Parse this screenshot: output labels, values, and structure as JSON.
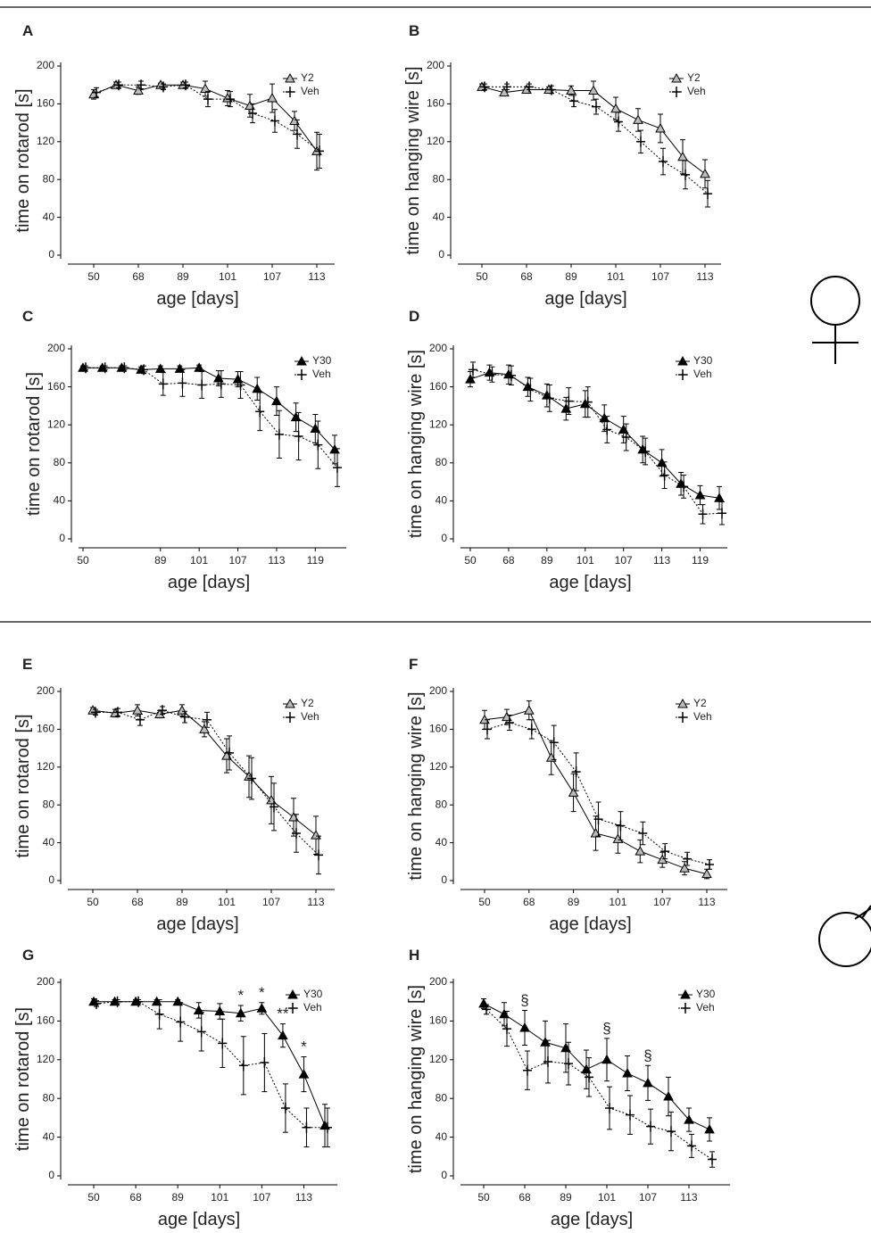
{
  "chart_data": [
    {
      "type": "line",
      "panel": "A",
      "ylabel": "time on rotarod [s]",
      "xlabel": "age [days]",
      "categories": [
        "50",
        null,
        "68",
        null,
        "89",
        null,
        "101",
        null,
        "107",
        null,
        "113"
      ],
      "ylim": [
        0,
        200
      ],
      "yticks": [
        0,
        40,
        80,
        120,
        160,
        200
      ],
      "series": [
        {
          "name": "Y2",
          "color": "#000000",
          "marker": "open-triangle",
          "line_style": "solid",
          "values": [
            170,
            180,
            174,
            180,
            180,
            176,
            166,
            158,
            166,
            142,
            110
          ],
          "errors": [
            5,
            3,
            4,
            2,
            3,
            8,
            8,
            12,
            15,
            10,
            20
          ]
        },
        {
          "name": "Veh",
          "color": "#000000",
          "marker": "plus",
          "line_style": "dotted",
          "values": [
            172,
            180,
            180,
            178,
            180,
            165,
            165,
            150,
            142,
            128,
            110
          ],
          "errors": [
            5,
            3,
            4,
            3,
            3,
            8,
            8,
            10,
            12,
            15,
            18
          ]
        }
      ]
    },
    {
      "type": "line",
      "panel": "B",
      "ylabel": "time on hanging wire [s]",
      "xlabel": "age [days]",
      "categories": [
        "50",
        null,
        "68",
        null,
        "89",
        null,
        "101",
        null,
        "107",
        null,
        "113"
      ],
      "ylim": [
        0,
        200
      ],
      "yticks": [
        0,
        40,
        80,
        120,
        160,
        200
      ],
      "series": [
        {
          "name": "Y2",
          "color": "#000000",
          "marker": "open-triangle",
          "line_style": "solid",
          "values": [
            178,
            172,
            175,
            175,
            174,
            174,
            155,
            143,
            134,
            104,
            86
          ],
          "errors": [
            3,
            3,
            3,
            3,
            5,
            10,
            12,
            12,
            15,
            18,
            15
          ]
        },
        {
          "name": "Veh",
          "color": "#000000",
          "marker": "plus",
          "line_style": "dotted",
          "values": [
            178,
            178,
            178,
            175,
            163,
            157,
            141,
            120,
            99,
            85,
            65
          ],
          "errors": [
            3,
            3,
            3,
            4,
            6,
            8,
            10,
            12,
            14,
            15,
            14
          ]
        }
      ]
    },
    {
      "type": "line",
      "panel": "C",
      "ylabel": "time on rotarod [s]",
      "xlabel": "age [days]",
      "categories": [
        "50",
        null,
        null,
        null,
        "89",
        null,
        "101",
        null,
        "107",
        null,
        "113",
        null,
        "119",
        null
      ],
      "ylim": [
        0,
        200
      ],
      "yticks": [
        0,
        40,
        80,
        120,
        160,
        200
      ],
      "series": [
        {
          "name": "Y30",
          "color": "#000000",
          "marker": "filled-triangle",
          "line_style": "solid",
          "values": [
            180,
            180,
            180,
            178,
            179,
            179,
            180,
            169,
            168,
            158,
            145,
            128,
            116,
            94
          ],
          "errors": [
            2,
            2,
            2,
            3,
            3,
            3,
            3,
            8,
            8,
            12,
            15,
            15,
            15,
            15
          ]
        },
        {
          "name": "Veh",
          "color": "#000000",
          "marker": "plus",
          "line_style": "dotted",
          "values": [
            180,
            180,
            180,
            178,
            163,
            164,
            162,
            163,
            162,
            134,
            110,
            108,
            99,
            75
          ],
          "errors": [
            2,
            2,
            2,
            4,
            12,
            14,
            14,
            14,
            14,
            20,
            25,
            25,
            25,
            20
          ]
        }
      ]
    },
    {
      "type": "line",
      "panel": "D",
      "ylabel": "time on hanging wire [s]",
      "xlabel": "age [days]",
      "categories": [
        "50",
        null,
        "68",
        null,
        "89",
        null,
        "101",
        null,
        "107",
        null,
        "113",
        null,
        "119",
        null
      ],
      "ylim": [
        0,
        200
      ],
      "yticks": [
        0,
        40,
        80,
        120,
        160,
        200
      ],
      "series": [
        {
          "name": "Y30",
          "color": "#000000",
          "marker": "filled-triangle",
          "line_style": "solid",
          "values": [
            168,
            175,
            173,
            160,
            151,
            137,
            142,
            127,
            115,
            94,
            80,
            58,
            46,
            43
          ],
          "errors": [
            8,
            8,
            10,
            10,
            12,
            12,
            14,
            14,
            14,
            14,
            14,
            12,
            10,
            12
          ]
        },
        {
          "name": "Veh",
          "color": "#000000",
          "marker": "plus",
          "line_style": "dotted",
          "values": [
            178,
            173,
            172,
            157,
            148,
            145,
            144,
            115,
            107,
            92,
            67,
            55,
            26,
            27
          ],
          "errors": [
            8,
            8,
            10,
            12,
            14,
            14,
            16,
            14,
            14,
            14,
            14,
            12,
            10,
            12
          ]
        }
      ]
    },
    {
      "type": "line",
      "panel": "E",
      "ylabel": "time on rotarod [s]",
      "xlabel": "age [days]",
      "categories": [
        "50",
        null,
        "68",
        null,
        "89",
        null,
        "101",
        null,
        "107",
        null,
        "113"
      ],
      "ylim": [
        0,
        200
      ],
      "yticks": [
        0,
        40,
        80,
        120,
        160,
        200
      ],
      "series": [
        {
          "name": "Y2",
          "color": "#000000",
          "marker": "open-triangle",
          "line_style": "solid",
          "values": [
            180,
            177,
            180,
            176,
            180,
            160,
            132,
            110,
            85,
            67,
            48
          ],
          "errors": [
            3,
            4,
            6,
            4,
            6,
            8,
            18,
            22,
            25,
            20,
            20
          ]
        },
        {
          "name": "Veh",
          "color": "#000000",
          "marker": "plus",
          "line_style": "dotted",
          "values": [
            178,
            178,
            170,
            180,
            173,
            170,
            135,
            108,
            78,
            50,
            27
          ],
          "errors": [
            3,
            4,
            6,
            4,
            6,
            8,
            18,
            22,
            25,
            20,
            20
          ]
        }
      ]
    },
    {
      "type": "line",
      "panel": "F",
      "ylabel": "time on hanging wire [s]",
      "xlabel": "age [days]",
      "categories": [
        "50",
        null,
        "68",
        null,
        "89",
        null,
        "101",
        null,
        "107",
        null,
        "113"
      ],
      "ylim": [
        0,
        200
      ],
      "yticks": [
        0,
        40,
        80,
        120,
        160,
        200
      ],
      "series": [
        {
          "name": "Y2",
          "color": "#000000",
          "marker": "open-triangle",
          "line_style": "solid",
          "values": [
            170,
            173,
            180,
            130,
            93,
            50,
            44,
            31,
            22,
            13,
            7
          ],
          "errors": [
            10,
            8,
            10,
            18,
            20,
            18,
            15,
            12,
            8,
            7,
            5
          ]
        },
        {
          "name": "Veh",
          "color": "#000000",
          "marker": "plus",
          "line_style": "dotted",
          "values": [
            160,
            167,
            160,
            146,
            115,
            65,
            58,
            50,
            31,
            23,
            17
          ],
          "errors": [
            10,
            8,
            10,
            18,
            20,
            18,
            15,
            12,
            8,
            7,
            5
          ]
        }
      ]
    },
    {
      "type": "line",
      "panel": "G",
      "ylabel": "time on rotarod [s]",
      "xlabel": "age [days]",
      "categories": [
        "50",
        null,
        "68",
        null,
        "89",
        null,
        "101",
        null,
        "107",
        null,
        "113",
        null
      ],
      "ylim": [
        0,
        200
      ],
      "yticks": [
        0,
        40,
        80,
        120,
        160,
        200
      ],
      "annotations": [
        null,
        null,
        null,
        null,
        null,
        null,
        null,
        "*",
        "*",
        "**",
        "*",
        null
      ],
      "series": [
        {
          "name": "Y30",
          "color": "#000000",
          "marker": "filled-triangle",
          "line_style": "solid",
          "values": [
            180,
            180,
            180,
            180,
            180,
            171,
            170,
            168,
            173,
            145,
            105,
            52
          ],
          "errors": [
            3,
            2,
            2,
            2,
            2,
            8,
            8,
            8,
            6,
            12,
            18,
            22
          ]
        },
        {
          "name": "Veh",
          "color": "#000000",
          "marker": "plus",
          "line_style": "dotted",
          "values": [
            178,
            180,
            180,
            167,
            159,
            149,
            137,
            114,
            117,
            70,
            50,
            50
          ],
          "errors": [
            3,
            2,
            2,
            15,
            20,
            20,
            25,
            30,
            30,
            25,
            20,
            20
          ]
        }
      ]
    },
    {
      "type": "line",
      "panel": "H",
      "ylabel": "time on hanging wire [s]",
      "xlabel": "age [days]",
      "categories": [
        "50",
        null,
        "68",
        null,
        "89",
        null,
        "101",
        null,
        "107",
        null,
        "113",
        null
      ],
      "ylim": [
        0,
        200
      ],
      "yticks": [
        0,
        40,
        80,
        120,
        160,
        200
      ],
      "annotations": [
        null,
        null,
        "§",
        null,
        null,
        null,
        "§",
        null,
        "§",
        null,
        null,
        null
      ],
      "series": [
        {
          "name": "Y30",
          "color": "#000000",
          "marker": "filled-triangle",
          "line_style": "solid",
          "values": [
            178,
            167,
            153,
            138,
            132,
            110,
            120,
            106,
            96,
            82,
            58,
            48
          ],
          "errors": [
            5,
            12,
            18,
            22,
            25,
            20,
            22,
            18,
            18,
            20,
            12,
            12
          ]
        },
        {
          "name": "Veh",
          "color": "#000000",
          "marker": "plus",
          "line_style": "dotted",
          "values": [
            172,
            152,
            109,
            118,
            116,
            102,
            70,
            63,
            51,
            46,
            31,
            17
          ],
          "errors": [
            5,
            18,
            20,
            22,
            22,
            20,
            22,
            20,
            18,
            20,
            12,
            8
          ]
        }
      ]
    }
  ]
}
